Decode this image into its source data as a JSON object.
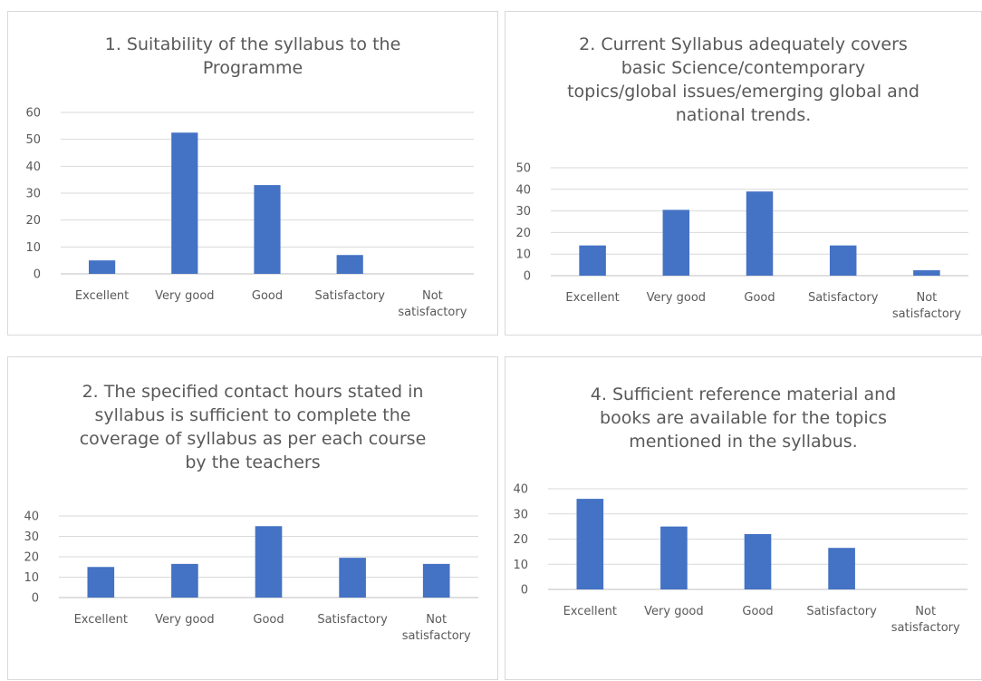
{
  "colors": {
    "bar": "#4472c4",
    "grid": "#d9d9d9",
    "text": "#595959"
  },
  "chart_data": [
    {
      "type": "bar",
      "title_lines": [
        "1. Suitability of the syllabus to the",
        "Programme"
      ],
      "categories": [
        [
          "Excellent"
        ],
        [
          "Very good"
        ],
        [
          "Good"
        ],
        [
          "Satisfactory"
        ],
        [
          "Not",
          "satisfactory"
        ]
      ],
      "values": [
        5,
        52.5,
        33,
        7,
        0
      ],
      "ylim": [
        0,
        60
      ],
      "yticks": [
        "0",
        "10",
        "20",
        "30",
        "40",
        "50",
        "60"
      ],
      "grid": true
    },
    {
      "type": "bar",
      "title_lines": [
        "2. Current Syllabus  adequately covers",
        "basic Science/contemporary",
        "topics/global issues/emerging global and",
        "national trends."
      ],
      "categories": [
        [
          "Excellent"
        ],
        [
          "Very good"
        ],
        [
          "Good"
        ],
        [
          "Satisfactory"
        ],
        [
          "Not",
          "satisfactory"
        ]
      ],
      "values": [
        14,
        30.5,
        39,
        14,
        2.5
      ],
      "ylim": [
        0,
        50
      ],
      "yticks": [
        "0",
        "10",
        "20",
        "30",
        "40",
        "50"
      ],
      "grid": true
    },
    {
      "type": "bar",
      "title_lines": [
        "2. The specified contact hours stated in",
        "syllabus is sufficient to complete the",
        "coverage of syllabus as per each course",
        "by the teachers"
      ],
      "categories": [
        [
          "Excellent"
        ],
        [
          "Very good"
        ],
        [
          "Good"
        ],
        [
          "Satisfactory"
        ],
        [
          "Not",
          "satisfactory"
        ]
      ],
      "values": [
        15,
        16.5,
        35,
        19.5,
        16.5
      ],
      "ylim": [
        0,
        40
      ],
      "yticks": [
        "0",
        "10",
        "20",
        "30",
        "40"
      ],
      "grid": true
    },
    {
      "type": "bar",
      "title_lines": [
        "4. Sufficient reference material and",
        "books are available for the topics",
        "mentioned in the syllabus."
      ],
      "categories": [
        [
          "Excellent"
        ],
        [
          "Very good"
        ],
        [
          "Good"
        ],
        [
          "Satisfactory"
        ],
        [
          "Not",
          "satisfactory"
        ]
      ],
      "values": [
        36,
        25,
        22,
        16.5,
        0
      ],
      "ylim": [
        0,
        40
      ],
      "yticks": [
        "0",
        "10",
        "20",
        "30",
        "40"
      ],
      "grid": true
    }
  ]
}
